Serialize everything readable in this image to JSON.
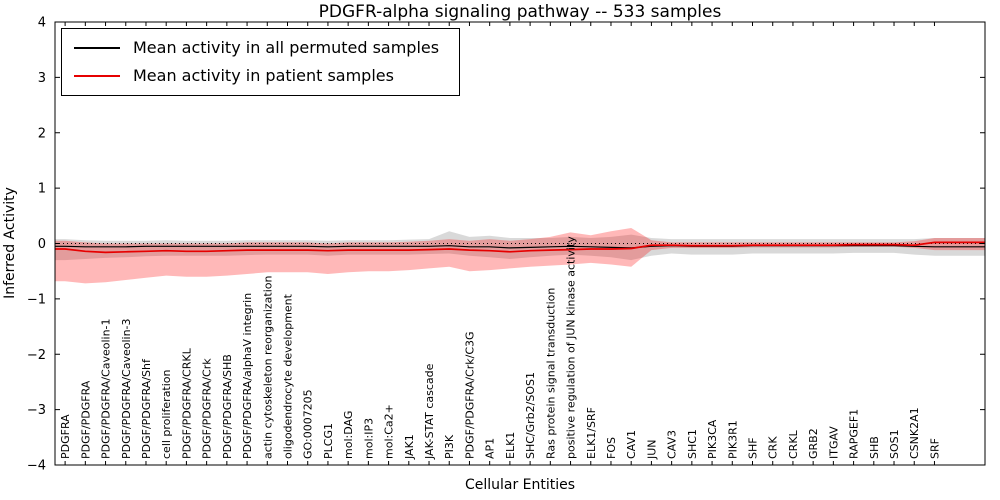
{
  "page": {
    "background": "#ffffff"
  },
  "chart_data": {
    "type": "line",
    "title": "PDGFR-alpha signaling pathway -- 533 samples",
    "xlabel": "Cellular Entities",
    "ylabel": "Inferred Activity",
    "ylim": [
      -4,
      4
    ],
    "yticks": [
      4,
      3,
      2,
      1,
      0,
      -1,
      -2,
      -3,
      -4
    ],
    "ytick_labels": [
      "4",
      "3",
      "2",
      "1",
      "0",
      "−1",
      "−2",
      "−3",
      "−4"
    ],
    "zero_line": {
      "y": 0,
      "style": "dotted",
      "color": "#000000"
    },
    "legend": {
      "location": "upper left"
    },
    "grid": false,
    "categories": [
      "PDGFRA",
      "PDGF/PDGFRA",
      "PDGF/PDGFRA/Caveolin-1",
      "PDGF/PDGFRA/Caveolin-3",
      "PDGF/PDGFRA/Shf",
      "cell proliferation",
      "PDGF/PDGFRA/CRKL",
      "PDGF/PDGFRA/Crk",
      "PDGF/PDGFRA/SHB",
      "PDGF/PDGFRA/alphaV integrin",
      "actin cytoskeleton reorganization",
      "oligodendrocyte development",
      "GO:0007205",
      "PLCG1",
      "mol:DAG",
      "mol:IP3",
      "mol:Ca2+",
      "JAK1",
      "JAK-STAT cascade",
      "PI3K",
      "PDGF/PDGFRA/Crk/C3G",
      "AP1",
      "ELK1",
      "SHC/Grb2/SOS1",
      "Ras protein signal transduction",
      "positive regulation of JUN kinase activity",
      "ELK1/SRF",
      "FOS",
      "CAV1",
      "JUN",
      "CAV3",
      "SHC1",
      "PIK3CA",
      "PIK3R1",
      "SHF",
      "CRK",
      "CRKL",
      "GRB2",
      "ITGAV",
      "RAPGEF1",
      "SHB",
      "SOS1",
      "CSNK2A1",
      "SRF"
    ],
    "series": [
      {
        "name": "Mean activity in all permuted samples",
        "color": "#000000",
        "band_color": "rgba(0,0,0,0.15)",
        "values": [
          -0.05,
          -0.06,
          -0.06,
          -0.06,
          -0.05,
          -0.05,
          -0.05,
          -0.05,
          -0.05,
          -0.05,
          -0.05,
          -0.05,
          -0.05,
          -0.06,
          -0.05,
          -0.05,
          -0.05,
          -0.05,
          -0.05,
          -0.04,
          -0.06,
          -0.06,
          -0.08,
          -0.07,
          -0.06,
          -0.05,
          -0.06,
          -0.07,
          -0.08,
          -0.05,
          -0.04,
          -0.05,
          -0.05,
          -0.05,
          -0.04,
          -0.04,
          -0.04,
          -0.04,
          -0.04,
          -0.04,
          -0.04,
          -0.04,
          -0.05,
          -0.06
        ],
        "band_upper": [
          0.08,
          0.06,
          0.05,
          0.05,
          0.05,
          0.06,
          0.05,
          0.05,
          0.05,
          0.06,
          0.06,
          0.06,
          0.06,
          0.05,
          0.06,
          0.06,
          0.06,
          0.07,
          0.08,
          0.22,
          0.12,
          0.14,
          0.1,
          0.1,
          0.1,
          0.12,
          0.1,
          0.12,
          0.16,
          0.1,
          0.08,
          0.08,
          0.08,
          0.08,
          0.08,
          0.08,
          0.08,
          0.08,
          0.08,
          0.08,
          0.08,
          0.08,
          0.08,
          0.1
        ],
        "band_lower": [
          -0.3,
          -0.28,
          -0.26,
          -0.25,
          -0.23,
          -0.22,
          -0.22,
          -0.22,
          -0.22,
          -0.21,
          -0.2,
          -0.2,
          -0.2,
          -0.22,
          -0.2,
          -0.2,
          -0.2,
          -0.2,
          -0.19,
          -0.18,
          -0.22,
          -0.25,
          -0.28,
          -0.25,
          -0.22,
          -0.2,
          -0.22,
          -0.25,
          -0.3,
          -0.22,
          -0.18,
          -0.2,
          -0.2,
          -0.2,
          -0.18,
          -0.18,
          -0.18,
          -0.18,
          -0.18,
          -0.17,
          -0.17,
          -0.17,
          -0.2,
          -0.22
        ]
      },
      {
        "name": "Mean activity in patient samples",
        "color": "#e60000",
        "band_color": "rgba(255,0,0,0.28)",
        "values": [
          -0.1,
          -0.14,
          -0.16,
          -0.15,
          -0.14,
          -0.13,
          -0.14,
          -0.14,
          -0.13,
          -0.12,
          -0.12,
          -0.12,
          -0.12,
          -0.13,
          -0.12,
          -0.12,
          -0.12,
          -0.12,
          -0.11,
          -0.1,
          -0.12,
          -0.13,
          -0.15,
          -0.13,
          -0.12,
          -0.11,
          -0.1,
          -0.1,
          -0.09,
          -0.03,
          -0.03,
          -0.04,
          -0.04,
          -0.04,
          -0.03,
          -0.03,
          -0.03,
          -0.03,
          -0.03,
          -0.02,
          -0.02,
          -0.02,
          -0.03,
          0.02
        ],
        "band_upper": [
          0.05,
          0.02,
          0.0,
          0.0,
          0.0,
          0.0,
          0.0,
          0.0,
          0.0,
          0.02,
          0.02,
          0.02,
          0.02,
          0.0,
          0.02,
          0.02,
          0.02,
          0.03,
          0.05,
          0.08,
          0.05,
          0.08,
          0.05,
          0.08,
          0.12,
          0.2,
          0.15,
          0.22,
          0.28,
          0.06,
          0.02,
          0.02,
          0.02,
          0.02,
          0.02,
          0.02,
          0.02,
          0.02,
          0.02,
          0.02,
          0.02,
          0.02,
          0.04,
          0.1
        ],
        "band_lower": [
          -0.68,
          -0.72,
          -0.7,
          -0.66,
          -0.62,
          -0.58,
          -0.6,
          -0.6,
          -0.58,
          -0.55,
          -0.52,
          -0.52,
          -0.52,
          -0.55,
          -0.52,
          -0.5,
          -0.5,
          -0.48,
          -0.45,
          -0.42,
          -0.5,
          -0.48,
          -0.45,
          -0.42,
          -0.4,
          -0.38,
          -0.35,
          -0.38,
          -0.42,
          -0.12,
          -0.08,
          -0.08,
          -0.08,
          -0.08,
          -0.07,
          -0.07,
          -0.07,
          -0.07,
          -0.07,
          -0.06,
          -0.06,
          -0.06,
          -0.08,
          -0.12
        ]
      }
    ]
  }
}
